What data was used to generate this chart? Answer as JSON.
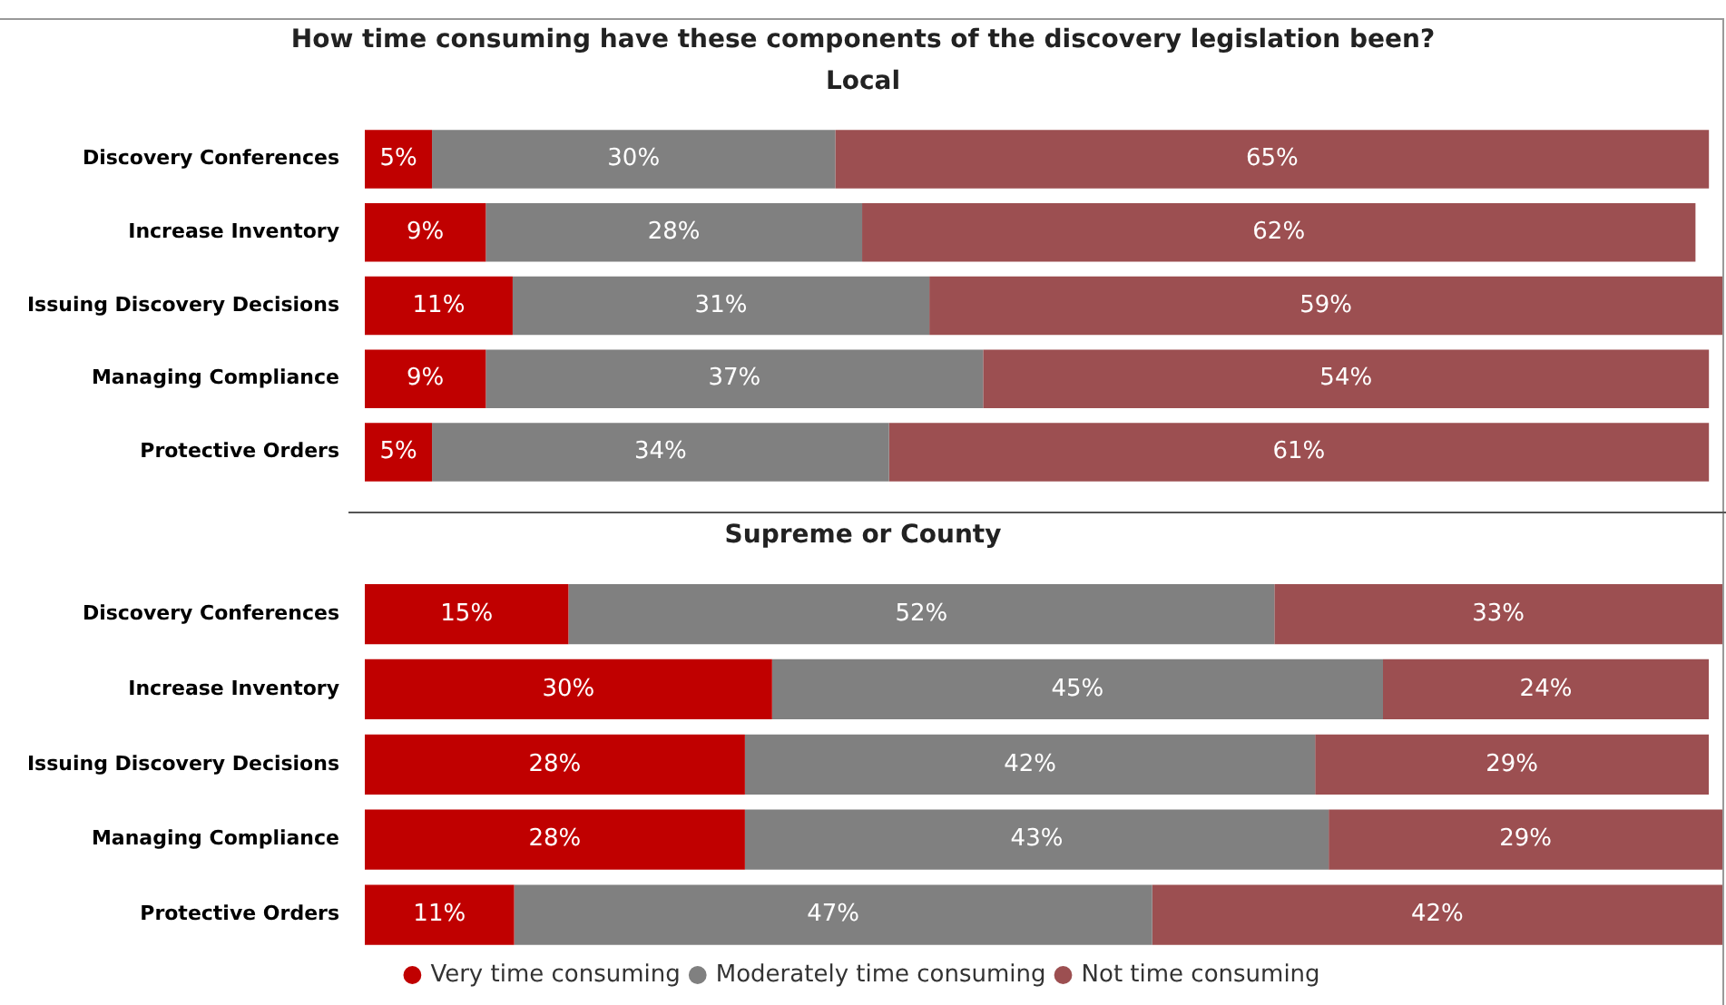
{
  "chart_data": [
    {
      "type": "bar",
      "orientation": "horizontal",
      "stacked": true,
      "title": "How time consuming have these components of the discovery legislation been?",
      "subtitle": "Local",
      "categories": [
        "Discovery Conferences",
        "Increase Inventory",
        "Issuing Discovery Decisions",
        "Managing Compliance",
        "Protective Orders"
      ],
      "series": [
        {
          "color": "#c00000",
          "values": [
            5,
            9,
            11,
            9,
            5
          ],
          "value_labels": [
            "5%",
            "9%",
            "11%",
            "9%",
            "5%"
          ]
        },
        {
          "color": "#808080",
          "values": [
            30,
            28,
            31,
            37,
            34
          ],
          "value_labels": [
            "30%",
            "28%",
            "31%",
            "37%",
            "34%"
          ]
        },
        {
          "color": "#9c4f51",
          "values": [
            65,
            62,
            59,
            54,
            61
          ],
          "value_labels": [
            "65%",
            "62%",
            "59%",
            "54%",
            "61%"
          ]
        }
      ],
      "tick_labels": "y",
      "legend": false
    },
    {
      "type": "bar",
      "orientation": "horizontal",
      "stacked": true,
      "title": "Supreme or County",
      "categories": [
        "Discovery Conferences",
        "Increase Inventory",
        "Issuing Discovery Decisions",
        "Managing Compliance",
        "Protective Orders"
      ],
      "series": [
        {
          "name": "Very time consuming",
          "color": "#c00000",
          "values": [
            15,
            30,
            28,
            28,
            11
          ],
          "value_labels": [
            "15%",
            "30%",
            "28%",
            "28%",
            "11%"
          ]
        },
        {
          "name": "Moderately time consuming",
          "color": "#808080",
          "values": [
            52,
            45,
            42,
            43,
            47
          ],
          "value_labels": [
            "52%",
            "45%",
            "42%",
            "43%",
            "47%"
          ]
        },
        {
          "name": "Not time consuming",
          "color": "#9c4f51",
          "values": [
            33,
            24,
            29,
            29,
            42
          ],
          "value_labels": [
            "33%",
            "24%",
            "29%",
            "29%",
            "42%"
          ]
        }
      ],
      "tick_labels": "y",
      "legend": "bottom"
    }
  ]
}
